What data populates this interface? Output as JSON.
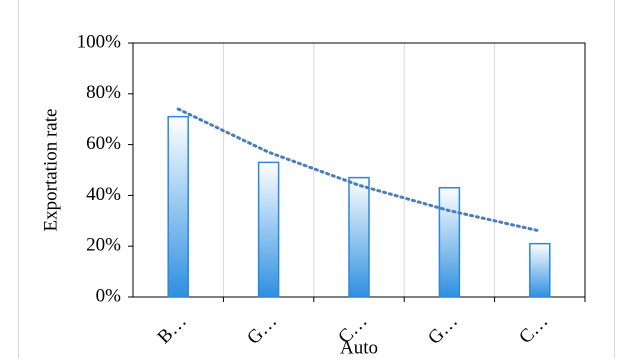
{
  "chart_data": {
    "type": "bar",
    "categories": [
      "B…",
      "G…",
      "C…",
      "G…",
      "C…"
    ],
    "values": [
      71,
      53,
      47,
      43,
      21
    ],
    "color": "#2e86de",
    "trendline": {
      "values": [
        74,
        57,
        44,
        34,
        26
      ],
      "color": "#4a7ebb"
    },
    "x_label": "Auto",
    "y_label": "Exportation rate",
    "ylim": [
      0,
      100
    ],
    "yticks": [
      {
        "value": 0,
        "label": "0%"
      },
      {
        "value": 20,
        "label": "20%"
      },
      {
        "value": 40,
        "label": "40%"
      },
      {
        "value": 60,
        "label": "60%"
      },
      {
        "value": 80,
        "label": "80%"
      },
      {
        "value": 100,
        "label": "100%"
      }
    ]
  }
}
